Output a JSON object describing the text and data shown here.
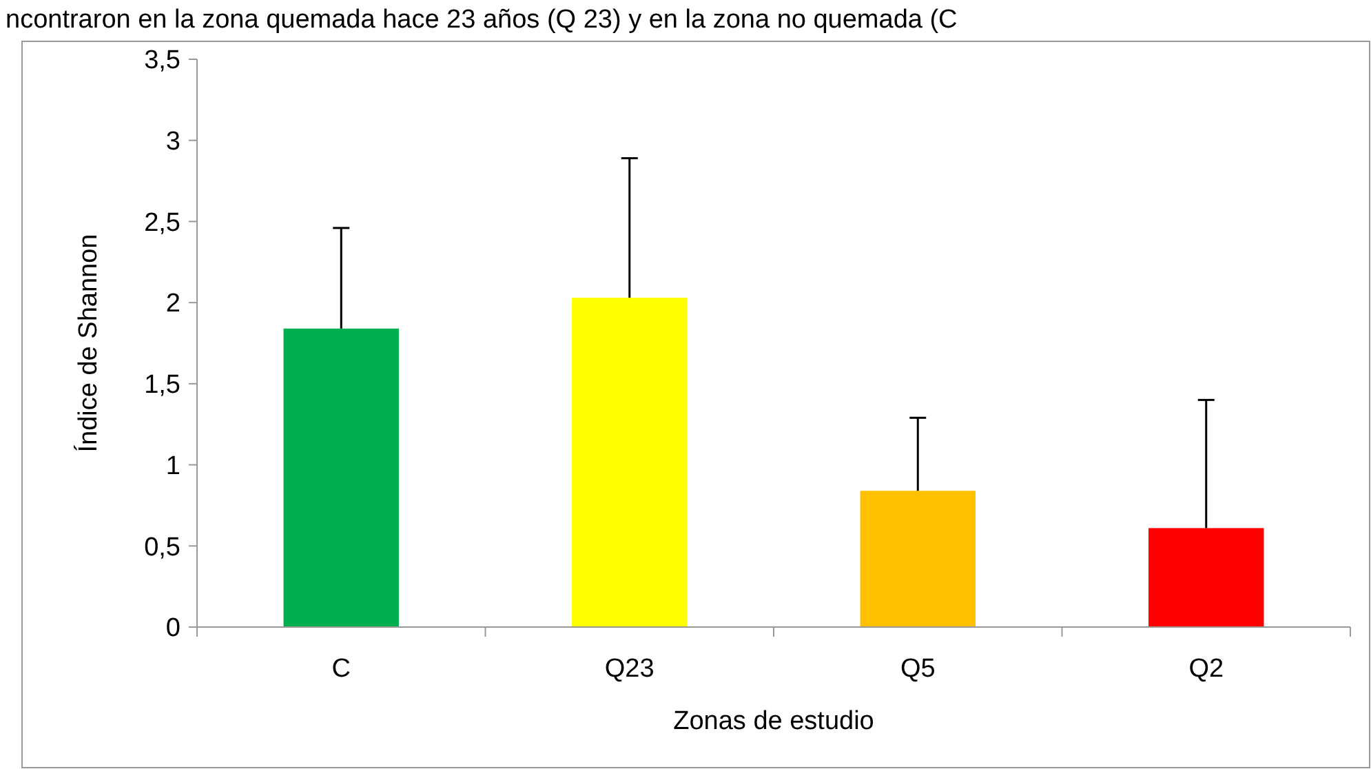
{
  "chart_data": {
    "type": "bar",
    "categories": [
      "C",
      "Q23",
      "Q5",
      "Q2"
    ],
    "values": [
      1.84,
      2.03,
      0.84,
      0.61
    ],
    "colors": [
      "#00b050",
      "#ffff00",
      "#ffc000",
      "#ff0000"
    ],
    "errors": [
      [
        1.84,
        2.46
      ],
      [
        2.03,
        2.89
      ],
      [
        0.84,
        1.29
      ],
      [
        0.61,
        1.4
      ]
    ],
    "xlabel": "Zonas de estudio",
    "ylabel": "Índice de Shannon",
    "ylim": [
      0,
      3.5
    ],
    "yticks": [
      {
        "value": 0,
        "label": "0"
      },
      {
        "value": 0.5,
        "label": "0,5"
      },
      {
        "value": 1,
        "label": "1"
      },
      {
        "value": 1.5,
        "label": "1,5"
      },
      {
        "value": 2,
        "label": "2"
      },
      {
        "value": 2.5,
        "label": "2,5"
      },
      {
        "value": 3,
        "label": "3"
      },
      {
        "value": 3.5,
        "label": "3,5"
      }
    ],
    "annotations": [
      "ncontraron en la zona quemada hace 23 años (Q 23) y en la zona no quemada (C"
    ],
    "grid": false
  }
}
